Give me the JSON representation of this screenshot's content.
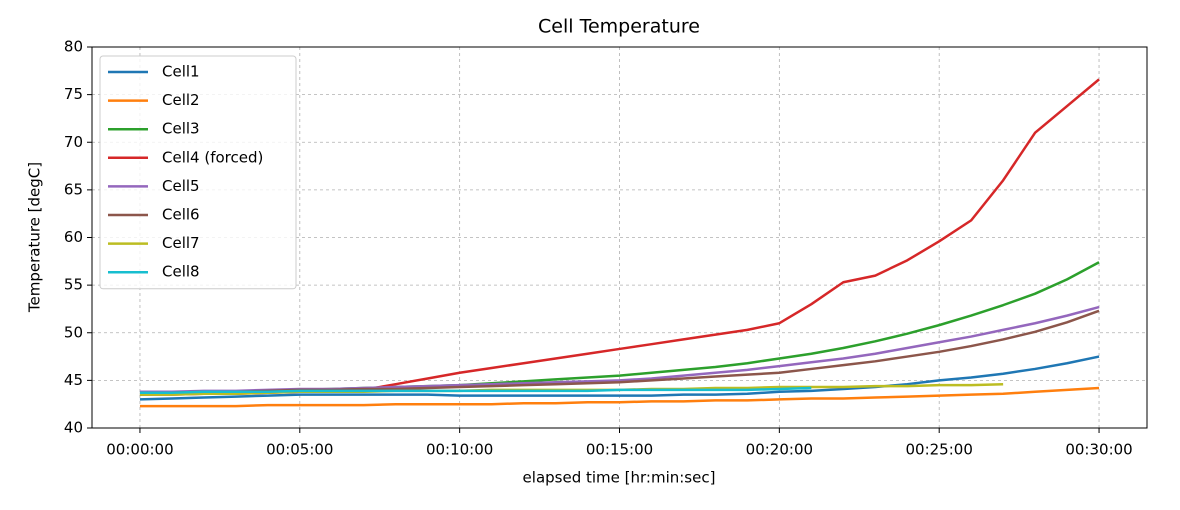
{
  "chart_data": {
    "type": "line",
    "title": "Cell Temperature",
    "x_label": "elapsed time [hr:min:sec]",
    "y_label": "Temperature [degC]",
    "x": [
      0,
      60,
      120,
      180,
      240,
      300,
      360,
      420,
      480,
      540,
      600,
      660,
      720,
      780,
      840,
      900,
      960,
      1020,
      1080,
      1140,
      1200,
      1260,
      1320,
      1380,
      1440,
      1500,
      1560,
      1620,
      1680,
      1740,
      1800
    ],
    "series": [
      {
        "name": "Cell1",
        "color": "#1f77b4",
        "values": [
          43.0,
          43.1,
          43.2,
          43.3,
          43.4,
          43.5,
          43.5,
          43.5,
          43.5,
          43.5,
          43.4,
          43.4,
          43.4,
          43.4,
          43.4,
          43.4,
          43.4,
          43.5,
          43.5,
          43.6,
          43.8,
          43.9,
          44.1,
          44.3,
          44.6,
          45.0,
          45.3,
          45.7,
          46.2,
          46.8,
          47.5
        ]
      },
      {
        "name": "Cell2",
        "color": "#ff7f0e",
        "values": [
          42.3,
          42.3,
          42.3,
          42.3,
          42.4,
          42.4,
          42.4,
          42.4,
          42.5,
          42.5,
          42.5,
          42.5,
          42.6,
          42.6,
          42.7,
          42.7,
          42.8,
          42.8,
          42.9,
          42.9,
          43.0,
          43.1,
          43.1,
          43.2,
          43.3,
          43.4,
          43.5,
          43.6,
          43.8,
          44.0,
          44.2
        ]
      },
      {
        "name": "Cell3",
        "color": "#2ca02c",
        "values": [
          43.5,
          43.6,
          43.7,
          43.8,
          43.9,
          44.0,
          44.1,
          44.2,
          44.3,
          44.4,
          44.5,
          44.7,
          44.9,
          45.1,
          45.3,
          45.5,
          45.8,
          46.1,
          46.4,
          46.8,
          47.3,
          47.8,
          48.4,
          49.1,
          49.9,
          50.8,
          51.8,
          52.9,
          54.1,
          55.6,
          57.4
        ]
      },
      {
        "name": "Cell4 (forced)",
        "color": "#d62728",
        "values": [
          43.5,
          43.5,
          43.6,
          43.6,
          43.7,
          43.8,
          43.9,
          44.0,
          44.6,
          45.2,
          45.8,
          46.3,
          46.8,
          47.3,
          47.8,
          48.3,
          48.8,
          49.3,
          49.8,
          50.3,
          51.0,
          53.0,
          55.3,
          56.0,
          57.6,
          59.6,
          61.8,
          66.0,
          71.0,
          73.8,
          76.6
        ]
      },
      {
        "name": "Cell5",
        "color": "#9467bd",
        "values": [
          43.8,
          43.8,
          43.9,
          43.9,
          44.0,
          44.1,
          44.1,
          44.2,
          44.3,
          44.4,
          44.5,
          44.6,
          44.7,
          44.8,
          44.9,
          45.0,
          45.2,
          45.5,
          45.8,
          46.1,
          46.5,
          46.9,
          47.3,
          47.8,
          48.4,
          49.0,
          49.6,
          50.3,
          51.0,
          51.8,
          52.7
        ]
      },
      {
        "name": "Cell6",
        "color": "#8c564b",
        "values": [
          43.7,
          43.7,
          43.8,
          43.8,
          43.9,
          44.0,
          44.0,
          44.1,
          44.1,
          44.2,
          44.3,
          44.4,
          44.5,
          44.6,
          44.7,
          44.8,
          45.0,
          45.2,
          45.4,
          45.6,
          45.8,
          46.2,
          46.6,
          47.0,
          47.5,
          48.0,
          48.6,
          49.3,
          50.1,
          51.1,
          52.3
        ]
      },
      {
        "name": "Cell7",
        "color": "#bcbd22",
        "values": [
          43.5,
          43.5,
          43.6,
          43.6,
          43.7,
          43.8,
          43.8,
          43.8,
          43.9,
          43.9,
          43.9,
          44.0,
          44.0,
          44.0,
          44.0,
          44.0,
          44.1,
          44.1,
          44.2,
          44.2,
          44.3,
          44.3,
          44.3,
          44.4,
          44.4,
          44.5,
          44.5,
          44.6,
          null,
          null,
          null
        ]
      },
      {
        "name": "Cell8",
        "color": "#17becf",
        "values": [
          43.7,
          43.7,
          43.8,
          43.8,
          43.8,
          43.9,
          43.9,
          43.9,
          43.9,
          43.9,
          43.9,
          43.9,
          43.9,
          43.9,
          43.9,
          44.0,
          44.0,
          44.0,
          44.0,
          44.0,
          44.1,
          44.2,
          null,
          null,
          null,
          null,
          null,
          null,
          null,
          null,
          null
        ]
      }
    ],
    "xlim": [
      -90,
      1890
    ],
    "ylim": [
      40,
      80
    ],
    "xticks": [
      {
        "value": 0,
        "label": "00:00:00"
      },
      {
        "value": 300,
        "label": "00:05:00"
      },
      {
        "value": 600,
        "label": "00:10:00"
      },
      {
        "value": 900,
        "label": "00:15:00"
      },
      {
        "value": 1200,
        "label": "00:20:00"
      },
      {
        "value": 1500,
        "label": "00:25:00"
      },
      {
        "value": 1800,
        "label": "00:30:00"
      }
    ],
    "yticks": [
      40,
      45,
      50,
      55,
      60,
      65,
      70,
      75,
      80
    ],
    "grid": true,
    "legend": "upper left"
  }
}
